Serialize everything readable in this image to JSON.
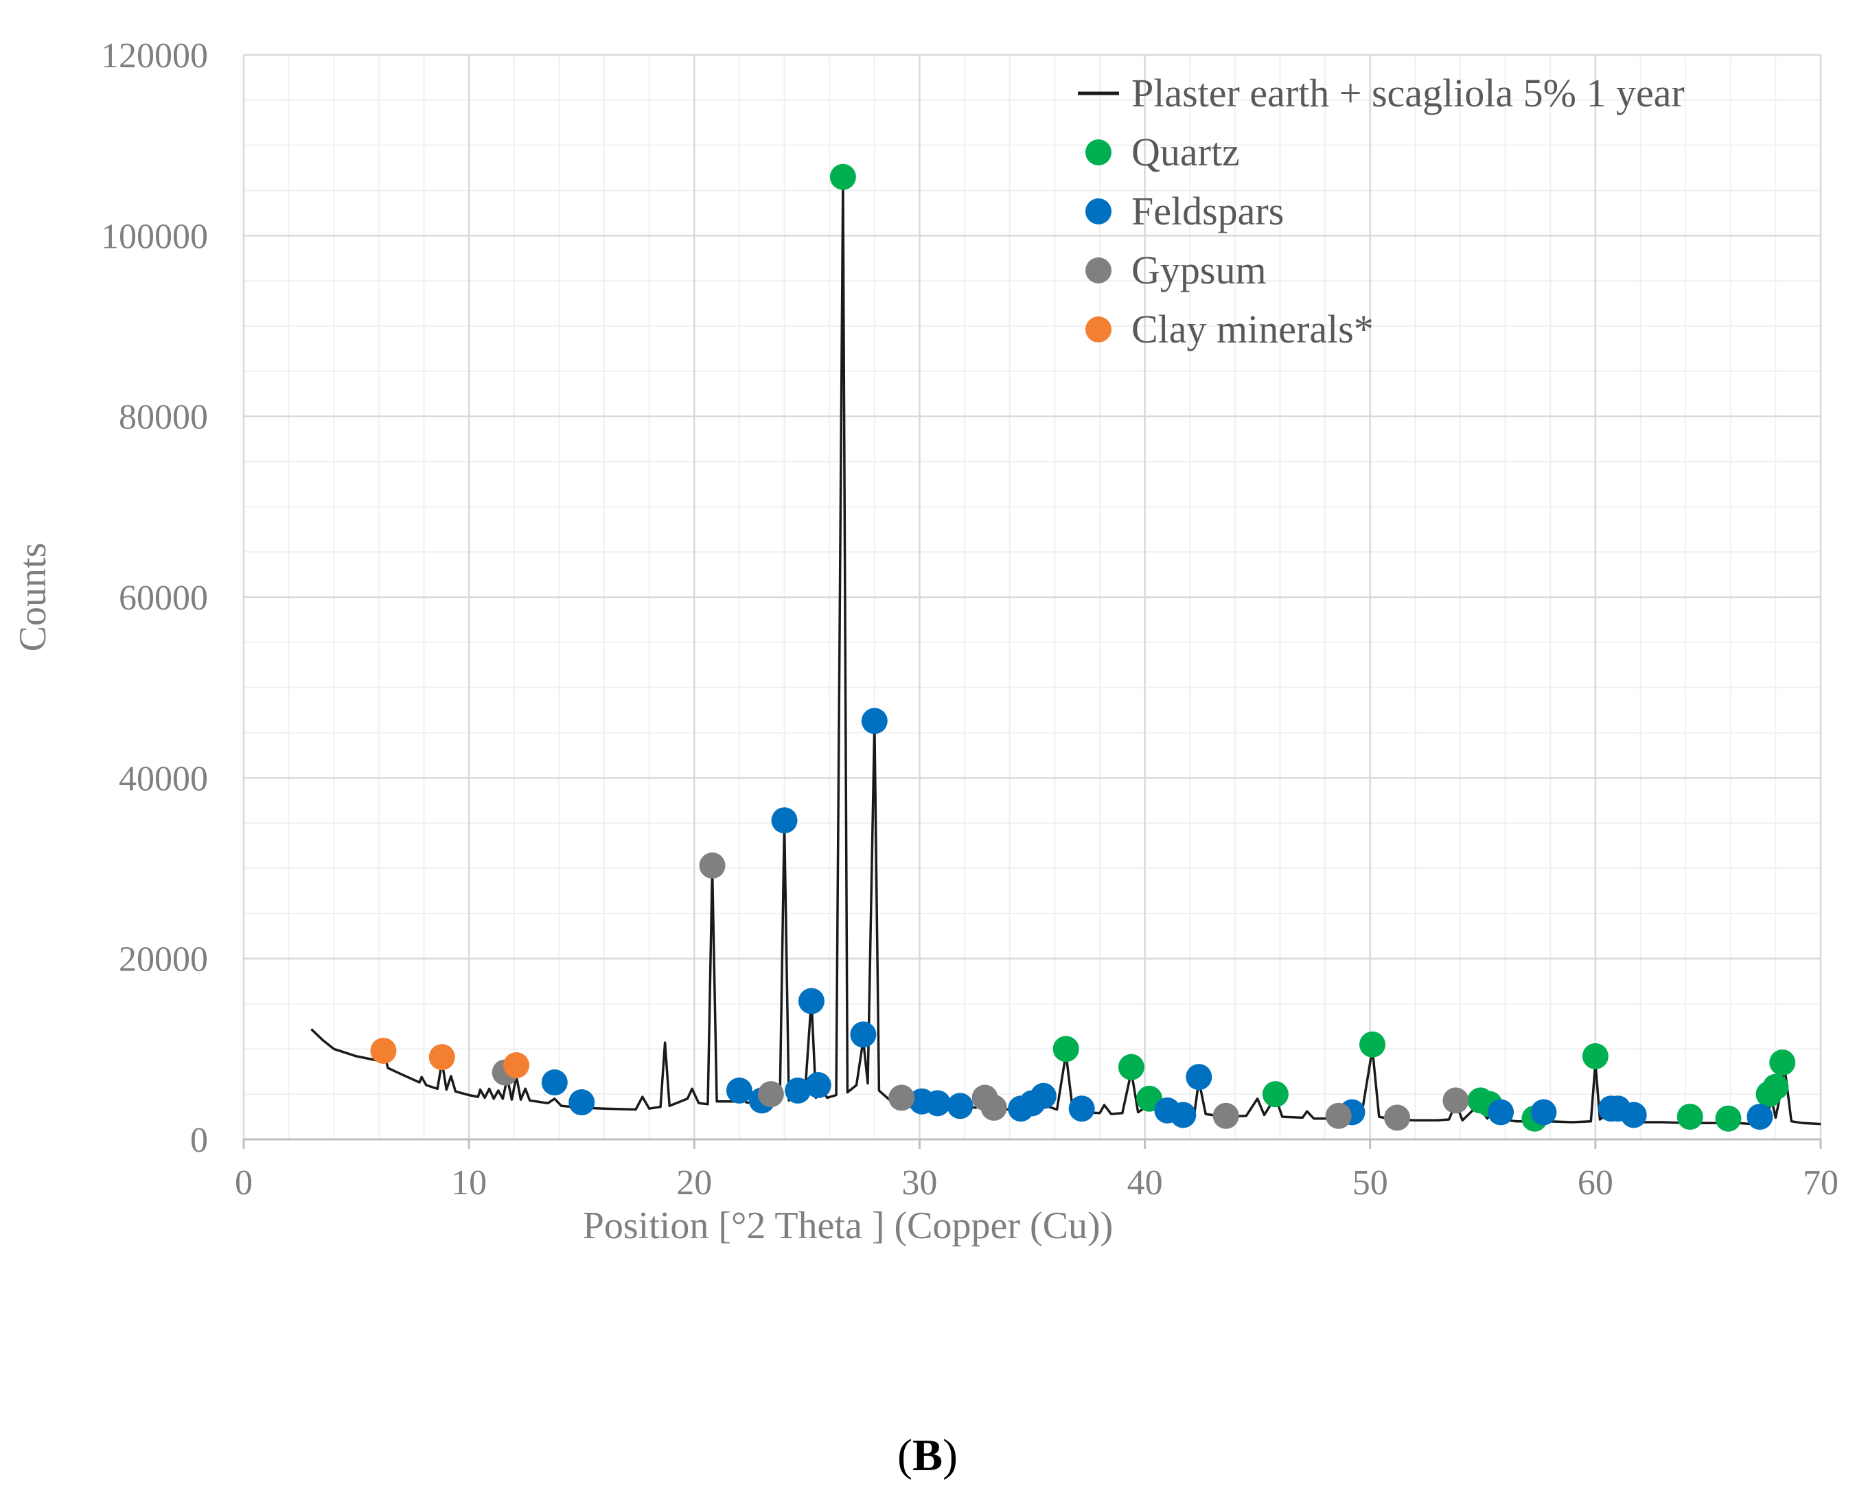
{
  "chart_data": {
    "type": "line",
    "title": "",
    "xlabel": "Position [°2 Theta ] (Copper (Cu))",
    "ylabel": "Counts",
    "xlim": [
      0,
      70
    ],
    "ylim": [
      0,
      120000
    ],
    "x_ticks": [
      "0",
      "10",
      "20",
      "30",
      "40",
      "50",
      "60",
      "70"
    ],
    "y_ticks": [
      "0",
      "20000",
      "40000",
      "60000",
      "80000",
      "100000",
      "120000"
    ],
    "grid": true,
    "legend_position": "top-right",
    "series": [
      {
        "name": "Plaster earth + scagliola 5% 1 year",
        "color": "#1a1a1a",
        "points": [
          [
            3.0,
            12200
          ],
          [
            3.5,
            11000
          ],
          [
            4.0,
            10000
          ],
          [
            5.0,
            9200
          ],
          [
            6.0,
            8700
          ],
          [
            6.2,
            9900
          ],
          [
            6.4,
            7900
          ],
          [
            7.0,
            7200
          ],
          [
            7.8,
            6300
          ],
          [
            7.9,
            6900
          ],
          [
            8.1,
            6000
          ],
          [
            8.6,
            5600
          ],
          [
            8.8,
            8600
          ],
          [
            9.0,
            5500
          ],
          [
            9.2,
            7000
          ],
          [
            9.4,
            5300
          ],
          [
            10.0,
            4900
          ],
          [
            10.4,
            4700
          ],
          [
            10.5,
            5500
          ],
          [
            10.7,
            4600
          ],
          [
            10.9,
            5600
          ],
          [
            11.1,
            4500
          ],
          [
            11.3,
            5400
          ],
          [
            11.5,
            4500
          ],
          [
            11.7,
            6800
          ],
          [
            11.9,
            4400
          ],
          [
            12.1,
            7000
          ],
          [
            12.3,
            4400
          ],
          [
            12.5,
            5600
          ],
          [
            12.7,
            4300
          ],
          [
            13.5,
            4000
          ],
          [
            13.8,
            4500
          ],
          [
            14.1,
            3700
          ],
          [
            15.0,
            3500
          ],
          [
            16.0,
            3400
          ],
          [
            17.4,
            3300
          ],
          [
            17.7,
            4700
          ],
          [
            18.0,
            3400
          ],
          [
            18.5,
            3600
          ],
          [
            18.7,
            10700
          ],
          [
            18.9,
            3700
          ],
          [
            19.7,
            4500
          ],
          [
            19.9,
            5600
          ],
          [
            20.2,
            4000
          ],
          [
            20.6,
            3900
          ],
          [
            20.8,
            30000
          ],
          [
            21.0,
            4200
          ],
          [
            21.8,
            4200
          ],
          [
            22.0,
            5200
          ],
          [
            22.3,
            4100
          ],
          [
            22.8,
            3900
          ],
          [
            23.0,
            4600
          ],
          [
            23.3,
            3800
          ],
          [
            23.6,
            4100
          ],
          [
            23.8,
            4400
          ],
          [
            24.0,
            35000
          ],
          [
            24.2,
            4300
          ],
          [
            24.6,
            5300
          ],
          [
            24.9,
            4600
          ],
          [
            25.2,
            15500
          ],
          [
            25.4,
            4600
          ],
          [
            25.6,
            5700
          ],
          [
            25.9,
            4600
          ],
          [
            26.3,
            4900
          ],
          [
            26.6,
            106000
          ],
          [
            26.8,
            5200
          ],
          [
            27.2,
            6000
          ],
          [
            27.5,
            11000
          ],
          [
            27.7,
            6200
          ],
          [
            28.0,
            46000
          ],
          [
            28.2,
            5400
          ],
          [
            28.7,
            4300
          ],
          [
            29.2,
            4500
          ],
          [
            29.5,
            4100
          ],
          [
            30.2,
            4000
          ],
          [
            30.7,
            3900
          ],
          [
            31.0,
            4100
          ],
          [
            31.5,
            3800
          ],
          [
            32.0,
            3600
          ],
          [
            32.5,
            3500
          ],
          [
            33.0,
            4200
          ],
          [
            33.3,
            3400
          ],
          [
            34.0,
            3300
          ],
          [
            34.5,
            3200
          ],
          [
            35.0,
            3600
          ],
          [
            35.5,
            3800
          ],
          [
            36.1,
            3300
          ],
          [
            36.5,
            9500
          ],
          [
            36.8,
            3200
          ],
          [
            37.3,
            3000
          ],
          [
            38.0,
            2900
          ],
          [
            38.2,
            3800
          ],
          [
            38.5,
            2800
          ],
          [
            39.0,
            2900
          ],
          [
            39.4,
            7500
          ],
          [
            39.7,
            3000
          ],
          [
            40.3,
            4000
          ],
          [
            40.6,
            2900
          ],
          [
            41.2,
            3100
          ],
          [
            41.8,
            2800
          ],
          [
            42.2,
            2900
          ],
          [
            42.4,
            6500
          ],
          [
            42.7,
            2800
          ],
          [
            43.5,
            2500
          ],
          [
            44.5,
            2600
          ],
          [
            45.0,
            4500
          ],
          [
            45.3,
            2700
          ],
          [
            45.8,
            4700
          ],
          [
            46.1,
            2500
          ],
          [
            47.0,
            2400
          ],
          [
            47.2,
            3100
          ],
          [
            47.5,
            2300
          ],
          [
            48.5,
            2300
          ],
          [
            49.0,
            2300
          ],
          [
            49.3,
            3000
          ],
          [
            49.6,
            2400
          ],
          [
            50.1,
            10000
          ],
          [
            50.4,
            2500
          ],
          [
            51.0,
            2200
          ],
          [
            52.0,
            2100
          ],
          [
            53.0,
            2100
          ],
          [
            53.5,
            2200
          ],
          [
            53.8,
            4000
          ],
          [
            54.1,
            2100
          ],
          [
            54.8,
            3800
          ],
          [
            55.2,
            2300
          ],
          [
            55.5,
            3300
          ],
          [
            55.8,
            2200
          ],
          [
            56.5,
            2000
          ],
          [
            57.2,
            2000
          ],
          [
            57.6,
            2700
          ],
          [
            57.9,
            2000
          ],
          [
            59.0,
            1900
          ],
          [
            59.8,
            2000
          ],
          [
            60.0,
            8500
          ],
          [
            60.2,
            2200
          ],
          [
            60.7,
            3000
          ],
          [
            61.0,
            2100
          ],
          [
            61.6,
            2400
          ],
          [
            62.0,
            1900
          ],
          [
            63.0,
            1900
          ],
          [
            64.0,
            1800
          ],
          [
            64.3,
            2100
          ],
          [
            64.6,
            1800
          ],
          [
            65.5,
            1800
          ],
          [
            66.0,
            2000
          ],
          [
            66.3,
            1800
          ],
          [
            67.0,
            1700
          ],
          [
            67.3,
            2100
          ],
          [
            67.6,
            1800
          ],
          [
            67.8,
            4600
          ],
          [
            68.0,
            2400
          ],
          [
            68.2,
            4800
          ],
          [
            68.4,
            8000
          ],
          [
            68.7,
            2000
          ],
          [
            69.2,
            1800
          ],
          [
            70.0,
            1700
          ]
        ]
      }
    ],
    "markers": [
      {
        "name": "Quartz",
        "color": "#00b050",
        "points": [
          [
            26.6,
            106500
          ],
          [
            36.5,
            10000
          ],
          [
            39.4,
            8000
          ],
          [
            40.2,
            4500
          ],
          [
            45.8,
            5000
          ],
          [
            50.1,
            10500
          ],
          [
            54.9,
            4300
          ],
          [
            55.3,
            3900
          ],
          [
            57.3,
            2300
          ],
          [
            60.0,
            9200
          ],
          [
            64.2,
            2500
          ],
          [
            65.9,
            2300
          ],
          [
            67.7,
            5000
          ],
          [
            68.0,
            5800
          ],
          [
            68.3,
            8500
          ]
        ]
      },
      {
        "name": "Feldspars",
        "color": "#0070c0",
        "points": [
          [
            13.8,
            6300
          ],
          [
            15.0,
            4100
          ],
          [
            22.0,
            5400
          ],
          [
            23.0,
            4300
          ],
          [
            24.0,
            35300
          ],
          [
            24.6,
            5400
          ],
          [
            25.2,
            15300
          ],
          [
            25.5,
            6000
          ],
          [
            27.5,
            11600
          ],
          [
            28.0,
            46300
          ],
          [
            30.1,
            4200
          ],
          [
            30.8,
            4000
          ],
          [
            31.8,
            3700
          ],
          [
            34.5,
            3400
          ],
          [
            35.0,
            4000
          ],
          [
            35.5,
            4800
          ],
          [
            37.2,
            3400
          ],
          [
            41.0,
            3200
          ],
          [
            41.7,
            2700
          ],
          [
            42.4,
            6900
          ],
          [
            49.2,
            3000
          ],
          [
            55.8,
            3000
          ],
          [
            57.7,
            3000
          ],
          [
            60.7,
            3400
          ],
          [
            61.0,
            3400
          ],
          [
            61.7,
            2700
          ],
          [
            67.3,
            2500
          ]
        ]
      },
      {
        "name": "Gypsum",
        "color": "#808080",
        "points": [
          [
            11.6,
            7400
          ],
          [
            20.8,
            30300
          ],
          [
            23.4,
            5000
          ],
          [
            29.2,
            4600
          ],
          [
            32.9,
            4600
          ],
          [
            33.3,
            3500
          ],
          [
            43.6,
            2600
          ],
          [
            48.6,
            2600
          ],
          [
            51.2,
            2400
          ],
          [
            53.8,
            4300
          ]
        ]
      },
      {
        "name": "Clay minerals*",
        "color": "#f28030",
        "points": [
          [
            6.2,
            9800
          ],
          [
            8.8,
            9100
          ],
          [
            12.1,
            8200
          ]
        ]
      }
    ],
    "legend": [
      {
        "label": "Plaster earth + scagliola 5% 1 year",
        "kind": "line",
        "color": "#1a1a1a"
      },
      {
        "label": "Quartz",
        "kind": "marker",
        "color": "#00b050"
      },
      {
        "label": "Feldspars",
        "kind": "marker",
        "color": "#0070c0"
      },
      {
        "label": "Gypsum",
        "kind": "marker",
        "color": "#808080"
      },
      {
        "label": "Clay minerals*",
        "kind": "marker",
        "color": "#f28030"
      }
    ]
  },
  "panel_label": {
    "open": "(",
    "letter": "B",
    "close": ")"
  }
}
